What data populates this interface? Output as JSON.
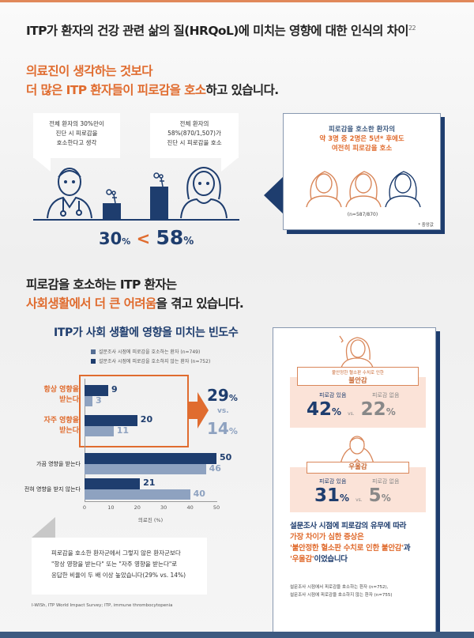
{
  "header": {
    "title": "ITP가 환자의 건강 관련 삶의 질(HRQoL)에 미치는 영향에 대한 인식의 차이",
    "ref": "22"
  },
  "section1": {
    "headline_line1": "의료진이 생각하는 것보다",
    "headline_line2_orange": "더 많은 ITP 환자들이 피로감을 호소",
    "headline_line2_rest": "하고 있습니다.",
    "doctor_bubble": [
      "전체 환자의 30%만이",
      "진단 시 피로감을",
      "호소한다고 생각"
    ],
    "patient_bubble": [
      "전체 환자의",
      "58%(870/1,507)가",
      "진단 시 피로감을 호소"
    ],
    "compare": {
      "left": "30",
      "right": "58",
      "unit": "%",
      "op": "<"
    },
    "right_box": {
      "line1": "피로감을 호소한 환자의",
      "line2": "약 3명 중 2명은 5년* 후에도",
      "line3": "여전히 피로감을 호소",
      "n": "(n=587/870)",
      "note": "* 중앙값"
    }
  },
  "section2": {
    "headline_line1": "피로감을 호소하는 ITP 환자는",
    "headline_line2_orange": "사회생활에서 더 큰 어려움",
    "headline_line2_rest": "을 겪고 있습니다.",
    "summary": {
      "a": "29",
      "b": "14",
      "unit": "%",
      "vs": "vs."
    },
    "note": [
      "피로감을 호소한 환자군에서 그렇지 않은 환자군보다",
      "\"항상 영향을 받는다\" 또는 \"자주 영향을 받는다\"로",
      "응답한 비율이 두 배 이상 높았습니다(29% vs. 14%)"
    ],
    "footnote": "I-WISh, ITP World Impact Survey; ITP, immune thrombocytopenia"
  },
  "right_panel": {
    "anxiety": {
      "sub": "불안정한 혈소판 수치로 인한",
      "title": "불안감",
      "with_label": "피로감 있음",
      "without_label": "피로감 없음",
      "with": "42",
      "without": "22",
      "unit": "%",
      "vs": "vs."
    },
    "depression": {
      "title": "우울감",
      "with_label": "피로감 있음",
      "without_label": "피로감 없음",
      "with": "31",
      "without": "5",
      "unit": "%",
      "vs": "vs."
    },
    "text1": "설문조사 시점에 피로감의 유무에 따라",
    "text2": "가장 차이가 심한 증상은",
    "text3_orange": "'불안정한 혈소판 수치로 인한 불안감'",
    "text3_rest": "과",
    "text4_orange": "'우울감'",
    "text4_rest": "이었습니다",
    "n1": "설문조사 시점에서 피로감을 호소하는 환자 (n=752),",
    "n2": "설문조사 시점에 피로감을 호소하지 않는 환자 (n=755)"
  },
  "colors": {
    "navy": "#1e3d6e",
    "light": "#8ea2c0",
    "orange": "#e06c2f"
  },
  "chart_data": {
    "type": "bar",
    "orientation": "horizontal",
    "title": "ITP가 사회 생활에 영향을 미치는 빈도수",
    "categories": [
      "항상 영향을 받는다",
      "자주 영향을 받는다",
      "가끔 영향을 받는다",
      "전혀 영향을 받지 않는다"
    ],
    "series": [
      {
        "name": "설문조사 시점에 피로감을 호소하는 환자 (n=749)",
        "values": [
          9,
          20,
          50,
          21
        ]
      },
      {
        "name": "설문조사 시점에 피로감을 호소하지 않는 환자 (n=752)",
        "values": [
          3,
          11,
          46,
          40
        ]
      }
    ],
    "xlabel": "의료진 (%)",
    "xlim": [
      0,
      50
    ],
    "xticks": [
      "0",
      "10",
      "20",
      "30",
      "40",
      "50"
    ],
    "legend": "top"
  }
}
